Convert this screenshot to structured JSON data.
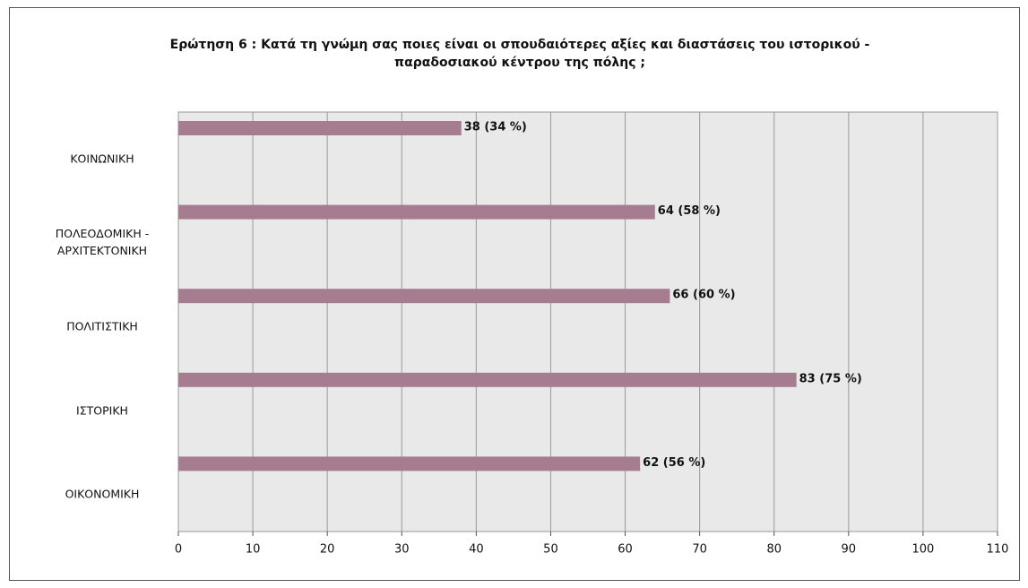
{
  "chart_data": {
    "type": "bar",
    "orientation": "horizontal",
    "title": "Ερώτηση 6 : Κατά τη γνώμη σας ποιες είναι οι σπουδαιότερες αξίες και διαστάσεις του ιστορικού - παραδοσιακού κέντρου της πόλης ;",
    "categories": [
      "ΚΟΙΝΩΝΙΚΗ",
      "ΠΟΛΕΟΔΟΜΙΚΗ - ΑΡΧΙΤΕΚΤΟΝΙΚΗ",
      "ΠΟΛΙΤΙΣΤΙΚΗ",
      "ΙΣΤΟΡΙΚΗ",
      "ΟΙΚΟΝΟΜΙΚΗ"
    ],
    "values": [
      38,
      64,
      66,
      83,
      62
    ],
    "value_labels": [
      "38 (34 %)",
      "64 (58 %)",
      "66 (60 %)",
      "83 (75 %)",
      "62 (56 %)"
    ],
    "color": "#a67c91",
    "xlim": [
      0,
      110
    ],
    "xticks": [
      0,
      10,
      20,
      30,
      40,
      50,
      60,
      70,
      80,
      90,
      100,
      110
    ],
    "grid": true
  }
}
